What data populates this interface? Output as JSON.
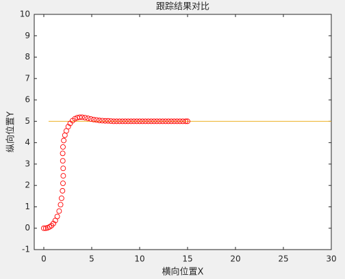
{
  "chart_data": {
    "type": "line",
    "title": "跟踪结果对比",
    "xlabel": "横向位置X",
    "ylabel": "纵向位置Y",
    "xlim": [
      -1,
      30
    ],
    "ylim": [
      -1,
      10
    ],
    "xticks": [
      0,
      5,
      10,
      15,
      20,
      25,
      30
    ],
    "yticks": [
      -1,
      0,
      1,
      2,
      3,
      4,
      5,
      6,
      7,
      8,
      9,
      10
    ],
    "series": [
      {
        "color": "#edb120",
        "linestyle": "-",
        "marker": "none",
        "x": [
          0.5,
          30
        ],
        "values": [
          5,
          5
        ]
      },
      {
        "color": "#ff0000",
        "linestyle": "none",
        "marker": "o",
        "x": [
          0,
          0.2,
          0.4,
          0.6,
          0.8,
          1.0,
          1.2,
          1.4,
          1.6,
          1.75,
          1.85,
          1.95,
          2.0,
          2.03,
          2.02,
          1.98,
          1.97,
          2.0,
          2.08,
          2.2,
          2.35,
          2.55,
          2.75,
          3.0,
          3.25,
          3.5,
          3.75,
          4.0,
          4.3,
          4.6,
          4.9,
          5.2,
          5.5,
          5.8,
          6.1,
          6.4,
          6.7,
          7.0,
          7.3,
          7.6,
          7.9,
          8.2,
          8.5,
          8.8,
          9.1,
          9.4,
          9.7,
          10.0,
          10.3,
          10.6,
          10.9,
          11.2,
          11.5,
          11.8,
          12.1,
          12.4,
          12.7,
          13.0,
          13.3,
          13.6,
          13.9,
          14.2,
          14.5,
          14.8,
          15.0
        ],
        "values": [
          0,
          0,
          0.02,
          0.06,
          0.12,
          0.22,
          0.36,
          0.55,
          0.8,
          1.1,
          1.4,
          1.75,
          2.1,
          2.45,
          2.8,
          3.15,
          3.5,
          3.8,
          4.1,
          4.35,
          4.55,
          4.75,
          4.9,
          5.03,
          5.12,
          5.17,
          5.19,
          5.19,
          5.17,
          5.14,
          5.11,
          5.08,
          5.06,
          5.04,
          5.03,
          5.02,
          5.02,
          5.01,
          5.0,
          5.0,
          5.0,
          5.0,
          5.0,
          5.0,
          5.0,
          5.0,
          5.0,
          5.0,
          5.0,
          5.0,
          5.0,
          5.0,
          5.0,
          5.0,
          5.0,
          5.0,
          5.0,
          5.0,
          5.0,
          5.0,
          5.0,
          5.0,
          5.0,
          5.0,
          5.0
        ]
      }
    ]
  }
}
